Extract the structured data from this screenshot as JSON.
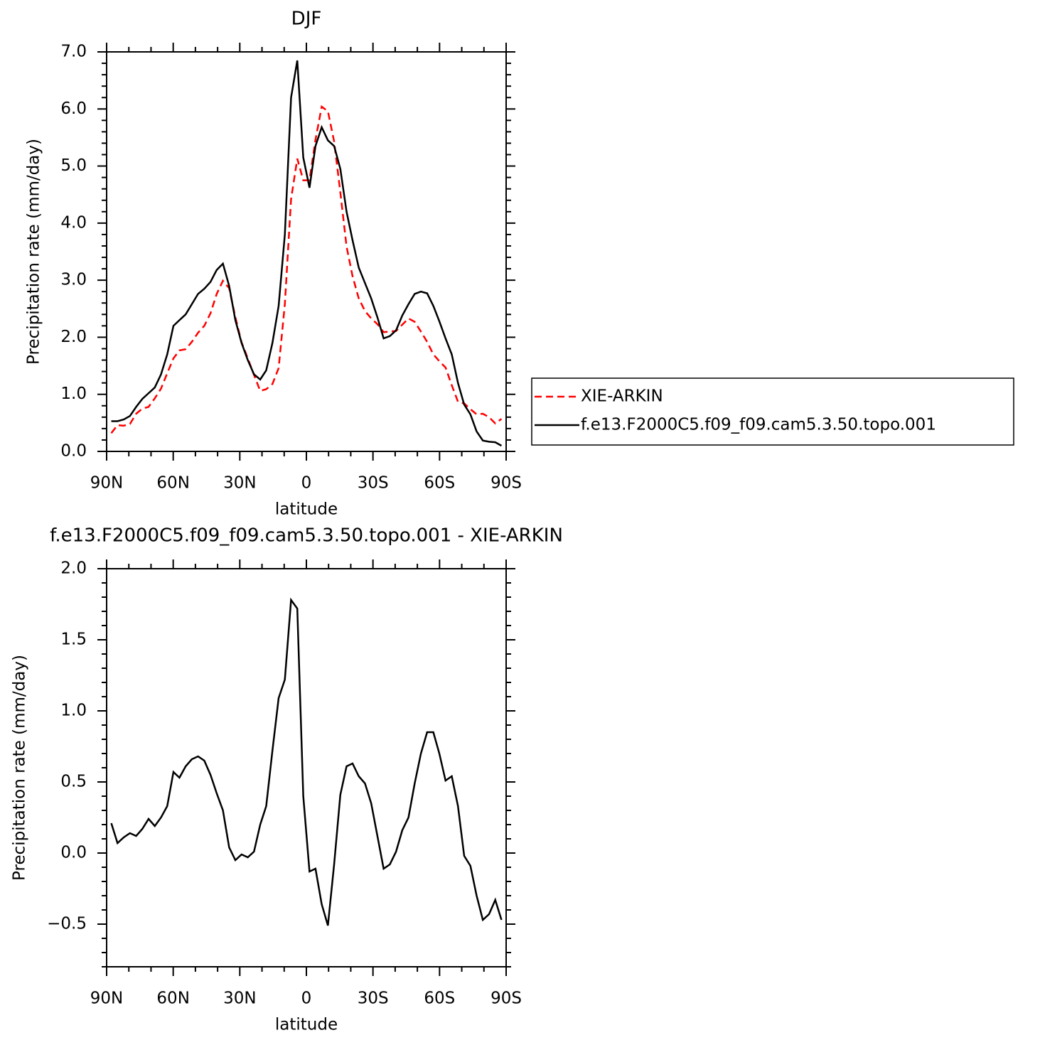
{
  "chart_data": [
    {
      "type": "line",
      "title": "DJF",
      "xlabel": "latitude",
      "ylabel": "Precipitation rate (mm/day)",
      "x": [
        87.9,
        85.1,
        82.3,
        79.5,
        76.7,
        73.9,
        71.1,
        68.3,
        65.5,
        62.7,
        59.9,
        57.2,
        54.4,
        51.6,
        48.8,
        46.0,
        43.2,
        40.4,
        37.6,
        34.8,
        32.0,
        29.2,
        26.4,
        23.6,
        20.8,
        18.1,
        15.3,
        12.5,
        9.7,
        6.9,
        4.1,
        1.4,
        -1.4,
        -4.1,
        -6.9,
        -9.7,
        -12.5,
        -15.3,
        -18.1,
        -20.8,
        -23.6,
        -26.4,
        -29.2,
        -32.0,
        -34.8,
        -37.6,
        -40.4,
        -43.2,
        -46.0,
        -48.8,
        -51.6,
        -54.4,
        -57.2,
        -59.9,
        -62.7,
        -65.5,
        -68.3,
        -71.1,
        -73.9,
        -76.7,
        -79.5,
        -82.3,
        -85.1,
        -87.9
      ],
      "xlim": [
        90,
        -90
      ],
      "xticks": [
        {
          "value": 90,
          "label": "90N"
        },
        {
          "value": 60,
          "label": "60N"
        },
        {
          "value": 30,
          "label": "30N"
        },
        0,
        {
          "value": -30,
          "label": "30S"
        },
        {
          "value": -60,
          "label": "60S"
        },
        {
          "value": -90,
          "label": "90S"
        }
      ],
      "ylim": [
        0,
        7
      ],
      "yticks": [
        {
          "value": 0,
          "label": "0.0"
        },
        {
          "value": 1,
          "label": "1.0"
        },
        {
          "value": 2,
          "label": "2.0"
        },
        {
          "value": 3,
          "label": "3.0"
        },
        {
          "value": 4,
          "label": "4.0"
        },
        {
          "value": 5,
          "label": "5.0"
        },
        {
          "value": 6,
          "label": "6.0"
        },
        {
          "value": 7,
          "label": "7.0"
        }
      ],
      "legend": "right",
      "series": [
        {
          "name": "XIE-ARKIN",
          "color": "#ff0000",
          "line_style": "dashed",
          "values": [
            0.32,
            0.46,
            0.45,
            0.48,
            0.66,
            0.75,
            0.78,
            0.93,
            1.1,
            1.37,
            1.63,
            1.77,
            1.79,
            1.92,
            2.08,
            2.2,
            2.42,
            2.76,
            2.99,
            2.86,
            2.35,
            1.91,
            1.63,
            1.34,
            1.06,
            1.09,
            1.18,
            1.46,
            2.58,
            4.42,
            5.13,
            4.75,
            4.75,
            5.46,
            6.04,
            5.96,
            5.43,
            4.54,
            3.59,
            3.07,
            2.68,
            2.46,
            2.33,
            2.23,
            2.09,
            2.1,
            2.11,
            2.22,
            2.33,
            2.27,
            2.1,
            1.92,
            1.7,
            1.58,
            1.47,
            1.16,
            0.87,
            0.84,
            0.74,
            0.65,
            0.66,
            0.6,
            0.49,
            0.57
          ]
        },
        {
          "name": "f.e13.F2000C5.f09_f09.cam5.3.50.topo.001",
          "color": "#000000",
          "line_style": "solid",
          "values": [
            0.53,
            0.53,
            0.56,
            0.62,
            0.78,
            0.92,
            1.02,
            1.12,
            1.35,
            1.7,
            2.2,
            2.3,
            2.4,
            2.58,
            2.76,
            2.85,
            2.97,
            3.18,
            3.29,
            2.9,
            2.3,
            1.9,
            1.6,
            1.35,
            1.26,
            1.42,
            1.9,
            2.55,
            3.8,
            6.2,
            6.85,
            5.15,
            4.62,
            5.35,
            5.68,
            5.45,
            5.35,
            4.95,
            4.2,
            3.7,
            3.22,
            2.95,
            2.68,
            2.35,
            1.98,
            2.02,
            2.12,
            2.38,
            2.58,
            2.76,
            2.8,
            2.77,
            2.55,
            2.28,
            1.98,
            1.7,
            1.2,
            0.82,
            0.65,
            0.35,
            0.19,
            0.17,
            0.16,
            0.1
          ]
        }
      ]
    },
    {
      "type": "line",
      "title": "f.e13.F2000C5.f09_f09.cam5.3.50.topo.001 - XIE-ARKIN",
      "xlabel": "latitude",
      "ylabel": "Precipitation rate (mm/day)",
      "x": [
        87.9,
        85.1,
        82.3,
        79.5,
        76.7,
        73.9,
        71.1,
        68.3,
        65.5,
        62.7,
        59.9,
        57.2,
        54.4,
        51.6,
        48.8,
        46.0,
        43.2,
        40.4,
        37.6,
        34.8,
        32.0,
        29.2,
        26.4,
        23.6,
        20.8,
        18.1,
        15.3,
        12.5,
        9.7,
        6.9,
        4.1,
        1.4,
        -1.4,
        -4.1,
        -6.9,
        -9.7,
        -12.5,
        -15.3,
        -18.1,
        -20.8,
        -23.6,
        -26.4,
        -29.2,
        -32.0,
        -34.8,
        -37.6,
        -40.4,
        -43.2,
        -46.0,
        -48.8,
        -51.6,
        -54.4,
        -57.2,
        -59.9,
        -62.7,
        -65.5,
        -68.3,
        -71.1,
        -73.9,
        -76.7,
        -79.5,
        -82.3,
        -85.1,
        -87.9
      ],
      "xlim": [
        90,
        -90
      ],
      "xticks": [
        {
          "value": 90,
          "label": "90N"
        },
        {
          "value": 60,
          "label": "60N"
        },
        {
          "value": 30,
          "label": "30N"
        },
        0,
        {
          "value": -30,
          "label": "30S"
        },
        {
          "value": -60,
          "label": "60S"
        },
        {
          "value": -90,
          "label": "90S"
        }
      ],
      "ylim": [
        -0.8,
        2.0
      ],
      "yticks": [
        {
          "value": -0.5,
          "label": "−0.5"
        },
        {
          "value": 0,
          "label": "0.0"
        },
        0.5,
        {
          "value": 1,
          "label": "1.0"
        },
        1.5,
        {
          "value": 2,
          "label": "2.0"
        }
      ],
      "color": "#000000",
      "values": [
        0.21,
        0.07,
        0.11,
        0.14,
        0.12,
        0.17,
        0.24,
        0.19,
        0.25,
        0.33,
        0.57,
        0.53,
        0.61,
        0.66,
        0.68,
        0.65,
        0.55,
        0.42,
        0.3,
        0.04,
        -0.05,
        -0.01,
        -0.03,
        0.01,
        0.2,
        0.33,
        0.72,
        1.09,
        1.22,
        1.78,
        1.72,
        0.4,
        -0.13,
        -0.11,
        -0.36,
        -0.51,
        -0.08,
        0.41,
        0.61,
        0.63,
        0.54,
        0.49,
        0.35,
        0.12,
        -0.11,
        -0.08,
        0.01,
        0.16,
        0.25,
        0.49,
        0.7,
        0.85,
        0.85,
        0.7,
        0.51,
        0.54,
        0.33,
        -0.02,
        -0.09,
        -0.3,
        -0.47,
        -0.43,
        -0.33,
        -0.47
      ]
    }
  ]
}
